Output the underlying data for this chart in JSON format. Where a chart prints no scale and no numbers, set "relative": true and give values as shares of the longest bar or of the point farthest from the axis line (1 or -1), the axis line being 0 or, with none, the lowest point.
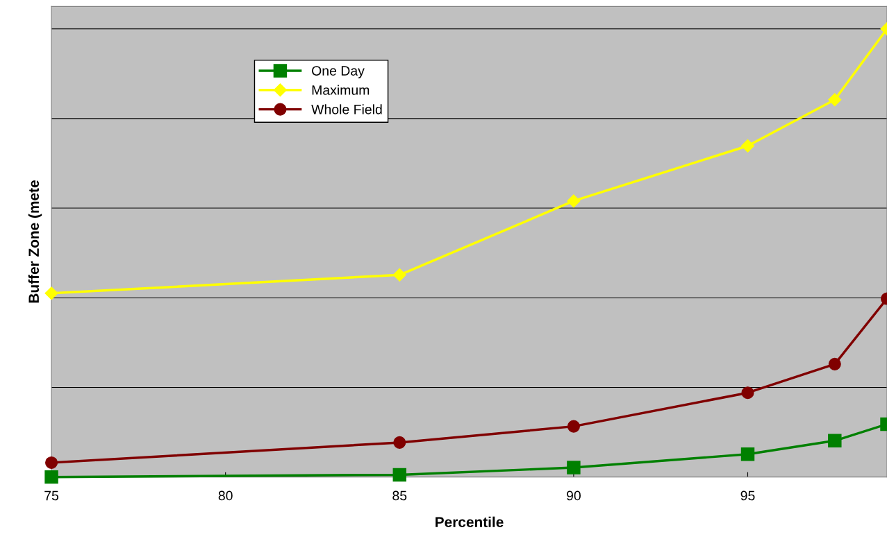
{
  "chart_data": {
    "type": "line",
    "xlabel": "Percentile",
    "ylabel": "Buffer Zone (mete",
    "relative": true,
    "x": [
      75,
      85,
      90,
      95,
      97.5,
      99
    ],
    "xlim": [
      75,
      99
    ],
    "xticks": [
      75,
      80,
      85,
      90,
      95
    ],
    "grid": "y",
    "legend": "top left",
    "series": [
      {
        "name": "One Day",
        "color": "#008000",
        "marker": "square",
        "values": [
          0,
          0.005,
          0.021,
          0.051,
          0.081,
          0.118
        ]
      },
      {
        "name": "Maximum",
        "color": "#ffff00",
        "marker": "diamond",
        "values": [
          0.41,
          0.451,
          0.616,
          0.739,
          0.842,
          1
        ]
      },
      {
        "name": "Whole Field",
        "color": "#800000",
        "marker": "circle",
        "values": [
          0.032,
          0.077,
          0.113,
          0.188,
          0.252,
          0.398
        ]
      }
    ]
  }
}
